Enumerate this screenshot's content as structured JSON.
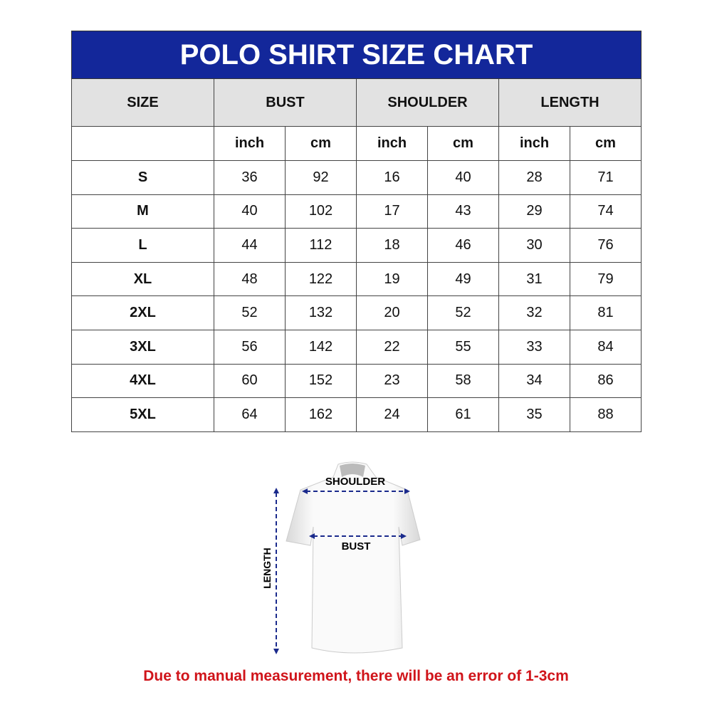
{
  "title": "POLO SHIRT SIZE CHART",
  "headers": [
    "SIZE",
    "BUST",
    "SHOULDER",
    "LENGTH"
  ],
  "units": [
    "inch",
    "cm",
    "inch",
    "cm",
    "inch",
    "cm"
  ],
  "rows": [
    [
      "S",
      "36",
      "92",
      "16",
      "40",
      "28",
      "71"
    ],
    [
      "M",
      "40",
      "102",
      "17",
      "43",
      "29",
      "74"
    ],
    [
      "L",
      "44",
      "112",
      "18",
      "46",
      "30",
      "76"
    ],
    [
      "XL",
      "48",
      "122",
      "19",
      "49",
      "31",
      "79"
    ],
    [
      "2XL",
      "52",
      "132",
      "20",
      "52",
      "32",
      "81"
    ],
    [
      "3XL",
      "56",
      "142",
      "22",
      "55",
      "33",
      "84"
    ],
    [
      "4XL",
      "60",
      "152",
      "23",
      "58",
      "34",
      "86"
    ],
    [
      "5XL",
      "64",
      "162",
      "24",
      "61",
      "35",
      "88"
    ]
  ],
  "diagram": {
    "shoulder": "SHOULDER",
    "bust": "BUST",
    "length": "LENGTH"
  },
  "note": "Due to manual measurement, there will be an error of 1-3cm",
  "colors": {
    "title_bg": "#13279a",
    "header_bg": "#e2e2e2",
    "arrow": "#1a2a8c",
    "note": "#d0141a"
  }
}
